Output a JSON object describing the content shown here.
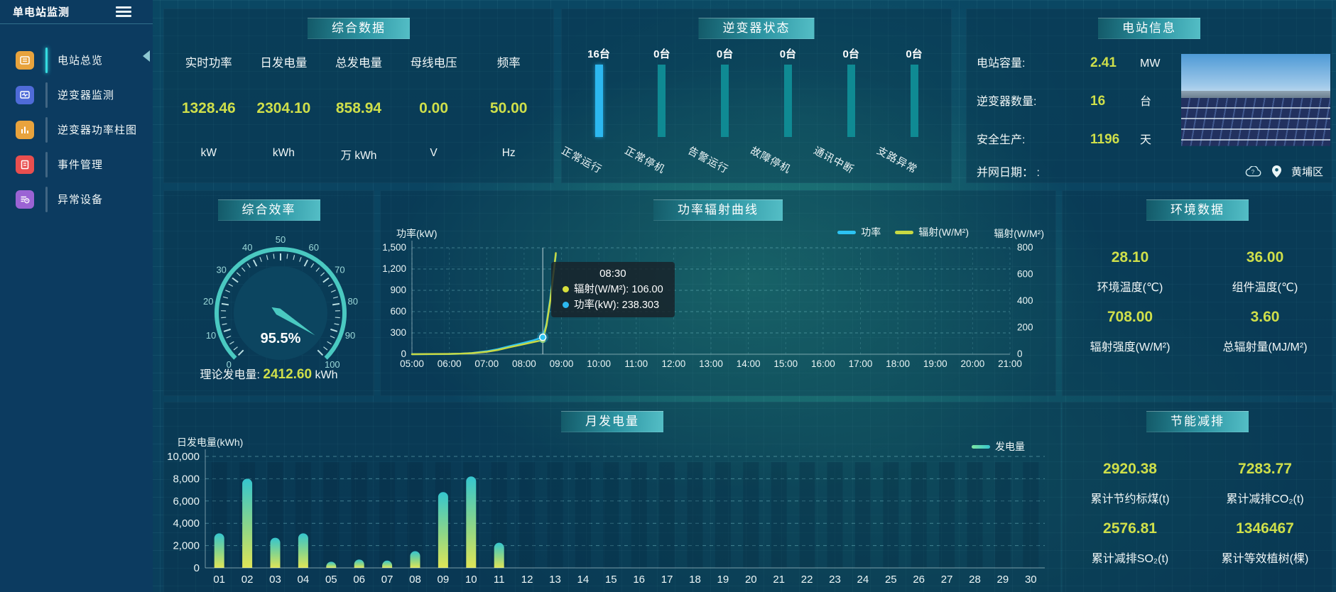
{
  "sidebar": {
    "title": "单电站监测",
    "items": [
      {
        "label": "电站总览",
        "icon": "overview",
        "color": "#e8a33d",
        "active": true
      },
      {
        "label": "逆变器监测",
        "icon": "monitor",
        "color": "#4f6bd8",
        "active": false
      },
      {
        "label": "逆变器功率柱图",
        "icon": "bars",
        "color": "#e8a33d",
        "active": false
      },
      {
        "label": "事件管理",
        "icon": "events",
        "color": "#e94f4f",
        "active": false
      },
      {
        "label": "异常设备",
        "icon": "devices",
        "color": "#9b63d4",
        "active": false
      }
    ]
  },
  "summary": {
    "title": "综合数据",
    "metrics": [
      {
        "label": "实时功率",
        "value": "1328.46",
        "unit": "kW"
      },
      {
        "label": "日发电量",
        "value": "2304.10",
        "unit": "kWh"
      },
      {
        "label": "总发电量",
        "value": "858.94",
        "unit": "万 kWh"
      },
      {
        "label": "母线电压",
        "value": "0.00",
        "unit": "V"
      },
      {
        "label": "频率",
        "value": "50.00",
        "unit": "Hz"
      }
    ]
  },
  "inverter_status": {
    "title": "逆变器状态",
    "active_color": "#2cb8f0",
    "idle_color": "#0f8a93",
    "items": [
      {
        "count": "16台",
        "label": "正常运行",
        "highlight": true
      },
      {
        "count": "0台",
        "label": "正常停机",
        "highlight": false
      },
      {
        "count": "0台",
        "label": "告警运行",
        "highlight": false
      },
      {
        "count": "0台",
        "label": "故障停机",
        "highlight": false
      },
      {
        "count": "0台",
        "label": "通讯中断",
        "highlight": false
      },
      {
        "count": "0台",
        "label": "支路异常",
        "highlight": false
      }
    ]
  },
  "station_info": {
    "title": "电站信息",
    "rows": [
      {
        "label": "电站容量:",
        "value": "2.41",
        "unit": "MW"
      },
      {
        "label": "逆变器数量:",
        "value": "16",
        "unit": "台"
      },
      {
        "label": "安全生产:",
        "value": "1196",
        "unit": "天"
      }
    ],
    "grid_date_label": "并网日期：  :",
    "district": "黄埔区"
  },
  "efficiency": {
    "title": "综合效率",
    "value": 95.5,
    "value_label": "95.5%",
    "theory_label": "理论发电量:",
    "theory_value": "2412.60",
    "theory_unit": "kWh"
  },
  "environment": {
    "title": "环境数据",
    "metrics": [
      {
        "value": "28.10",
        "label": "环境温度(℃)"
      },
      {
        "value": "36.00",
        "label": "组件温度(℃)"
      },
      {
        "value": "708.00",
        "label": "辐射强度(W/M²)"
      },
      {
        "value": "3.60",
        "label": "总辐射量(MJ/M²)"
      }
    ]
  },
  "saving": {
    "title": "节能减排",
    "metrics": [
      {
        "value": "2920.38",
        "label": "累计节约标煤(t)"
      },
      {
        "value": "7283.77",
        "label": "累计减排CO₂(t)"
      },
      {
        "value": "2576.81",
        "label": "累计减排SO₂(t)"
      },
      {
        "value": "1346467",
        "label": "累计等效植树(棵)"
      }
    ]
  },
  "chart_data": [
    {
      "type": "line",
      "title": "功率辐射曲线",
      "ylabel_left": "功率(kW)",
      "ylabel_right": "辐射(W/M²)",
      "x_range": [
        5,
        21
      ],
      "x_ticks": [
        "05:00",
        "06:00",
        "07:00",
        "08:00",
        "09:00",
        "10:00",
        "11:00",
        "12:00",
        "13:00",
        "14:00",
        "15:00",
        "16:00",
        "17:00",
        "18:00",
        "19:00",
        "20:00",
        "21:00"
      ],
      "ylim_left": [
        0,
        1500
      ],
      "yticks_left": [
        0,
        300,
        600,
        900,
        1200,
        1500
      ],
      "ylim_right": [
        0,
        800
      ],
      "yticks_right": [
        0,
        200,
        400,
        600,
        800
      ],
      "legend": [
        {
          "name": "功率",
          "color": "#2cc3f2"
        },
        {
          "name": "辐射(W/M²)",
          "color": "#c8d943"
        }
      ],
      "series": [
        {
          "name": "功率",
          "axis": "left",
          "color": "#2cc3f2",
          "points": [
            [
              5,
              0
            ],
            [
              5.5,
              1
            ],
            [
              6,
              3
            ],
            [
              6.3,
              8
            ],
            [
              6.6,
              16
            ],
            [
              7,
              42
            ],
            [
              7.3,
              72
            ],
            [
              7.6,
              112
            ],
            [
              8,
              162
            ],
            [
              8.25,
              196
            ],
            [
              8.5,
              238.3
            ],
            [
              8.6,
              430
            ],
            [
              8.7,
              780
            ],
            [
              8.78,
              1120
            ],
            [
              8.85,
              1400
            ]
          ]
        },
        {
          "name": "辐射(W/M²)",
          "axis": "right",
          "color": "#c8d943",
          "points": [
            [
              5,
              0
            ],
            [
              5.5,
              1
            ],
            [
              6,
              2
            ],
            [
              6.3,
              4
            ],
            [
              6.6,
              8
            ],
            [
              7,
              18
            ],
            [
              7.3,
              32
            ],
            [
              7.6,
              52
            ],
            [
              8,
              76
            ],
            [
              8.25,
              91
            ],
            [
              8.5,
              106
            ],
            [
              8.6,
              215
            ],
            [
              8.7,
              400
            ],
            [
              8.78,
              590
            ],
            [
              8.85,
              760
            ]
          ]
        }
      ],
      "crosshair_x": 8.5,
      "tooltip": {
        "time": "08:30",
        "lines": [
          {
            "dot": "#d7df3c",
            "text": "辐射(W/M²): 106.00"
          },
          {
            "dot": "#2cb8f0",
            "text": "功率(kW): 238.303"
          }
        ]
      }
    },
    {
      "type": "bar",
      "title": "月发电量",
      "ylabel": "日发电量(kWh)",
      "legend": [
        {
          "name": "发电量"
        }
      ],
      "categories": [
        "01",
        "02",
        "03",
        "04",
        "05",
        "06",
        "07",
        "08",
        "09",
        "10",
        "11",
        "12",
        "13",
        "14",
        "15",
        "16",
        "17",
        "18",
        "19",
        "20",
        "21",
        "22",
        "23",
        "24",
        "25",
        "26",
        "27",
        "28",
        "29",
        "30"
      ],
      "values": [
        3100,
        8000,
        2700,
        3100,
        550,
        750,
        650,
        1500,
        6800,
        8200,
        2250,
        0,
        0,
        0,
        0,
        0,
        0,
        0,
        0,
        0,
        0,
        0,
        0,
        0,
        0,
        0,
        0,
        0,
        0,
        0
      ],
      "ylim": [
        0,
        10000
      ],
      "yticks": [
        0,
        2000,
        4000,
        6000,
        8000,
        10000
      ]
    }
  ],
  "gauge_ticks": [
    0,
    10,
    20,
    30,
    40,
    50,
    60,
    70,
    80,
    90,
    100
  ]
}
